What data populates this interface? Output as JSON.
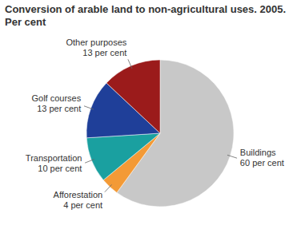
{
  "chart_data": {
    "type": "pie",
    "title": "Conversion of arable land to non-agricultural uses. 2005.",
    "subtitle": "Per cent",
    "categories": [
      "Buildings",
      "Afforestation",
      "Transportation",
      "Golf courses",
      "Other purposes"
    ],
    "values": [
      60,
      4,
      10,
      13,
      13
    ],
    "value_labels": [
      "60 per cent",
      "4 per cent",
      "10 per cent",
      "13 per cent",
      "13 per cent"
    ],
    "colors": [
      "#c8c8c8",
      "#f39a36",
      "#1aa0a0",
      "#1f3f99",
      "#9b1b1b"
    ],
    "data_labels": true
  }
}
